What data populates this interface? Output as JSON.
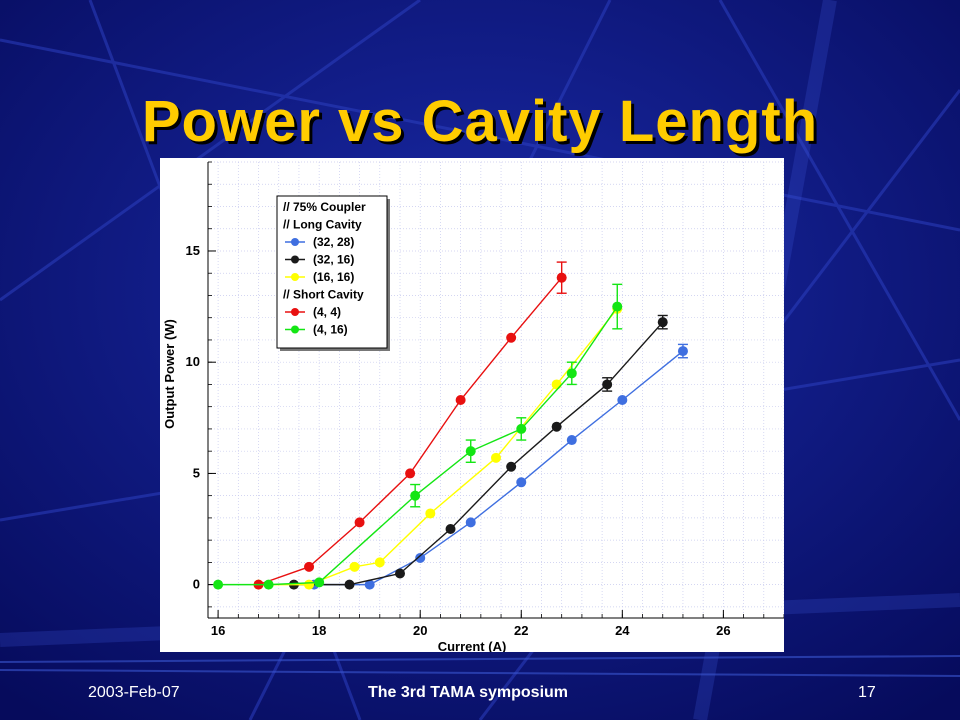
{
  "slide": {
    "title": "Power vs Cavity Length",
    "footer_date": "2003-Feb-07",
    "footer_event": "The 3rd TAMA symposium",
    "page_number": "17"
  },
  "colors": {
    "background": "#0a0f7a",
    "title": "#ffcc00"
  },
  "chart_data": {
    "type": "line",
    "xlabel": "Current (A)",
    "ylabel": "Output Power (W)",
    "xlim": [
      15.8,
      27.2
    ],
    "ylim": [
      -1.5,
      19.0
    ],
    "xticks": [
      16,
      18,
      20,
      22,
      24,
      26
    ],
    "yticks": [
      0,
      5,
      10,
      15
    ],
    "grid": true,
    "legend_position": "top-left",
    "legend_headers": [
      "// 75% Coupler",
      "// Long Cavity",
      "//  Short Cavity"
    ],
    "series": [
      {
        "name": "(32, 28)",
        "group": "Long Cavity",
        "color": "#3f6fe0",
        "x": [
          17.9,
          19.0,
          20.0,
          21.0,
          22.0,
          23.0,
          24.0,
          25.2
        ],
        "y": [
          0.0,
          0.0,
          1.2,
          2.8,
          4.6,
          6.5,
          8.3,
          10.5
        ],
        "err": [
          0,
          0,
          0,
          0,
          0,
          0,
          0,
          0.3
        ]
      },
      {
        "name": "(32, 16)",
        "group": "Long Cavity",
        "color": "#1a1a1a",
        "x": [
          17.5,
          18.6,
          19.6,
          20.6,
          21.8,
          22.7,
          23.7,
          24.8
        ],
        "y": [
          0.0,
          0.0,
          0.5,
          2.5,
          5.3,
          7.1,
          9.0,
          11.8
        ],
        "err": [
          0,
          0,
          0,
          0,
          0,
          0,
          0.3,
          0.3
        ]
      },
      {
        "name": "(16, 16)",
        "group": "Long Cavity",
        "color": "#ffff00",
        "x": [
          16.8,
          17.8,
          18.7,
          19.2,
          20.2,
          21.5,
          22.7,
          23.9
        ],
        "y": [
          0.0,
          0.0,
          0.8,
          1.0,
          3.2,
          5.7,
          9.0,
          12.4
        ],
        "err": [
          0,
          0,
          0,
          0,
          0,
          0,
          0,
          0
        ]
      },
      {
        "name": "(4, 4)",
        "group": "Short Cavity",
        "color": "#e81010",
        "x": [
          16.8,
          17.8,
          18.8,
          19.8,
          20.8,
          21.8,
          22.8
        ],
        "y": [
          0.0,
          0.8,
          2.8,
          5.0,
          8.3,
          11.1,
          13.8
        ],
        "err": [
          0,
          0,
          0,
          0,
          0,
          0,
          0.7
        ]
      },
      {
        "name": "(4, 16)",
        "group": "Short Cavity",
        "color": "#14e614",
        "x": [
          16.0,
          17.0,
          18.0,
          19.9,
          21.0,
          22.0,
          23.0,
          23.9
        ],
        "y": [
          0.0,
          0.0,
          0.1,
          4.0,
          6.0,
          7.0,
          9.5,
          12.5
        ],
        "err": [
          0,
          0,
          0,
          0.5,
          0.5,
          0.5,
          0.5,
          1.0
        ]
      }
    ]
  }
}
